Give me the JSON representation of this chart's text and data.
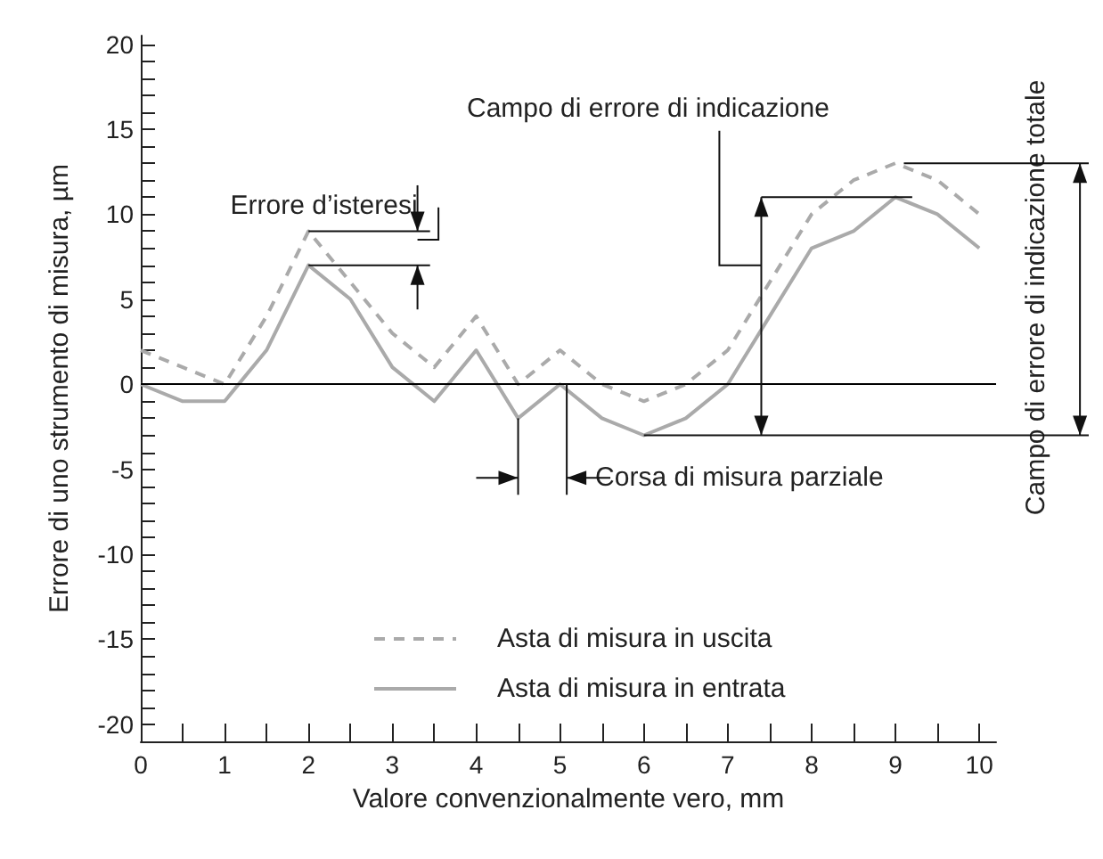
{
  "chart_data": {
    "type": "line",
    "xlabel": "Valore convenzionalmente vero, mm",
    "ylabel": "Errore di uno strumento di misura, µm",
    "x": [
      0,
      0.5,
      1,
      1.5,
      2,
      2.5,
      3,
      3.5,
      4,
      4.5,
      5,
      5.5,
      6,
      6.5,
      7,
      7.5,
      8,
      8.5,
      9,
      9.5,
      10
    ],
    "series": [
      {
        "name": "Asta di misura in uscita",
        "color": "#aaaaaa",
        "line_style": "dashed",
        "values": [
          2,
          1,
          0,
          4,
          9,
          6,
          3,
          1,
          4,
          0,
          2,
          0,
          -1,
          0,
          2,
          6,
          10,
          12,
          13,
          12,
          10
        ]
      },
      {
        "name": "Asta di misura in entrata",
        "color": "#aaaaaa",
        "line_style": "solid",
        "values": [
          0,
          -1,
          -1,
          2,
          7,
          5,
          1,
          -1,
          2,
          -2,
          0,
          -2,
          -3,
          -2,
          0,
          4,
          8,
          9,
          11,
          10,
          8
        ]
      }
    ],
    "xlim": [
      0,
      10.2
    ],
    "xticks": [
      0,
      {
        "value": 0.5,
        "label": null
      },
      1,
      {
        "value": 1.5,
        "label": null
      },
      2,
      {
        "value": 2.5,
        "label": null
      },
      3,
      {
        "value": 3.5,
        "label": null
      },
      4,
      {
        "value": 4.5,
        "label": null
      },
      5,
      {
        "value": 5.5,
        "label": null
      },
      6,
      {
        "value": 6.5,
        "label": null
      },
      7,
      {
        "value": 7.5,
        "label": null
      },
      8,
      {
        "value": 8.5,
        "label": null
      },
      9,
      {
        "value": 9.5,
        "label": null
      },
      10
    ],
    "ylim": [
      -21,
      20.5
    ],
    "yticks": [
      {
        "value": -21,
        "label": null
      },
      -20,
      {
        "value": -19,
        "label": null
      },
      {
        "value": -18,
        "label": null
      },
      {
        "value": -17,
        "label": null
      },
      {
        "value": -16,
        "label": null
      },
      -15,
      {
        "value": -14,
        "label": null
      },
      {
        "value": -13,
        "label": null
      },
      {
        "value": -12,
        "label": null
      },
      {
        "value": -11,
        "label": null
      },
      -10,
      {
        "value": -9,
        "label": null
      },
      {
        "value": -8,
        "label": null
      },
      {
        "value": -7,
        "label": null
      },
      {
        "value": -6,
        "label": null
      },
      -5,
      {
        "value": -4,
        "label": null
      },
      {
        "value": -3,
        "label": null
      },
      {
        "value": -2,
        "label": null
      },
      {
        "value": -1,
        "label": null
      },
      0,
      {
        "value": 1,
        "label": null
      },
      {
        "value": 2,
        "label": null
      },
      {
        "value": 3,
        "label": null
      },
      {
        "value": 4,
        "label": null
      },
      5,
      {
        "value": 6,
        "label": null
      },
      {
        "value": 7,
        "label": null
      },
      {
        "value": 8,
        "label": null
      },
      {
        "value": 9,
        "label": null
      },
      10,
      {
        "value": 11,
        "label": null
      },
      {
        "value": 12,
        "label": null
      },
      {
        "value": 13,
        "label": null
      },
      {
        "value": 14,
        "label": null
      },
      15,
      {
        "value": 16,
        "label": null
      },
      {
        "value": 17,
        "label": null
      },
      {
        "value": 18,
        "label": null
      },
      {
        "value": 19,
        "label": null
      },
      20
    ],
    "ref_lines": [
      {
        "axis": "y",
        "value": 0,
        "color": "#000000"
      }
    ],
    "annotations": [
      {
        "text": "Errore d’isteresi",
        "x": 2,
        "y": 8
      },
      "Campo di errore di indicazione",
      "Campo di errore di indicazione totale",
      {
        "text": "Corsa di misura parziale",
        "x": 5,
        "y": 0
      }
    ],
    "grid": false,
    "legend": "bottom left",
    "marker": "none"
  }
}
